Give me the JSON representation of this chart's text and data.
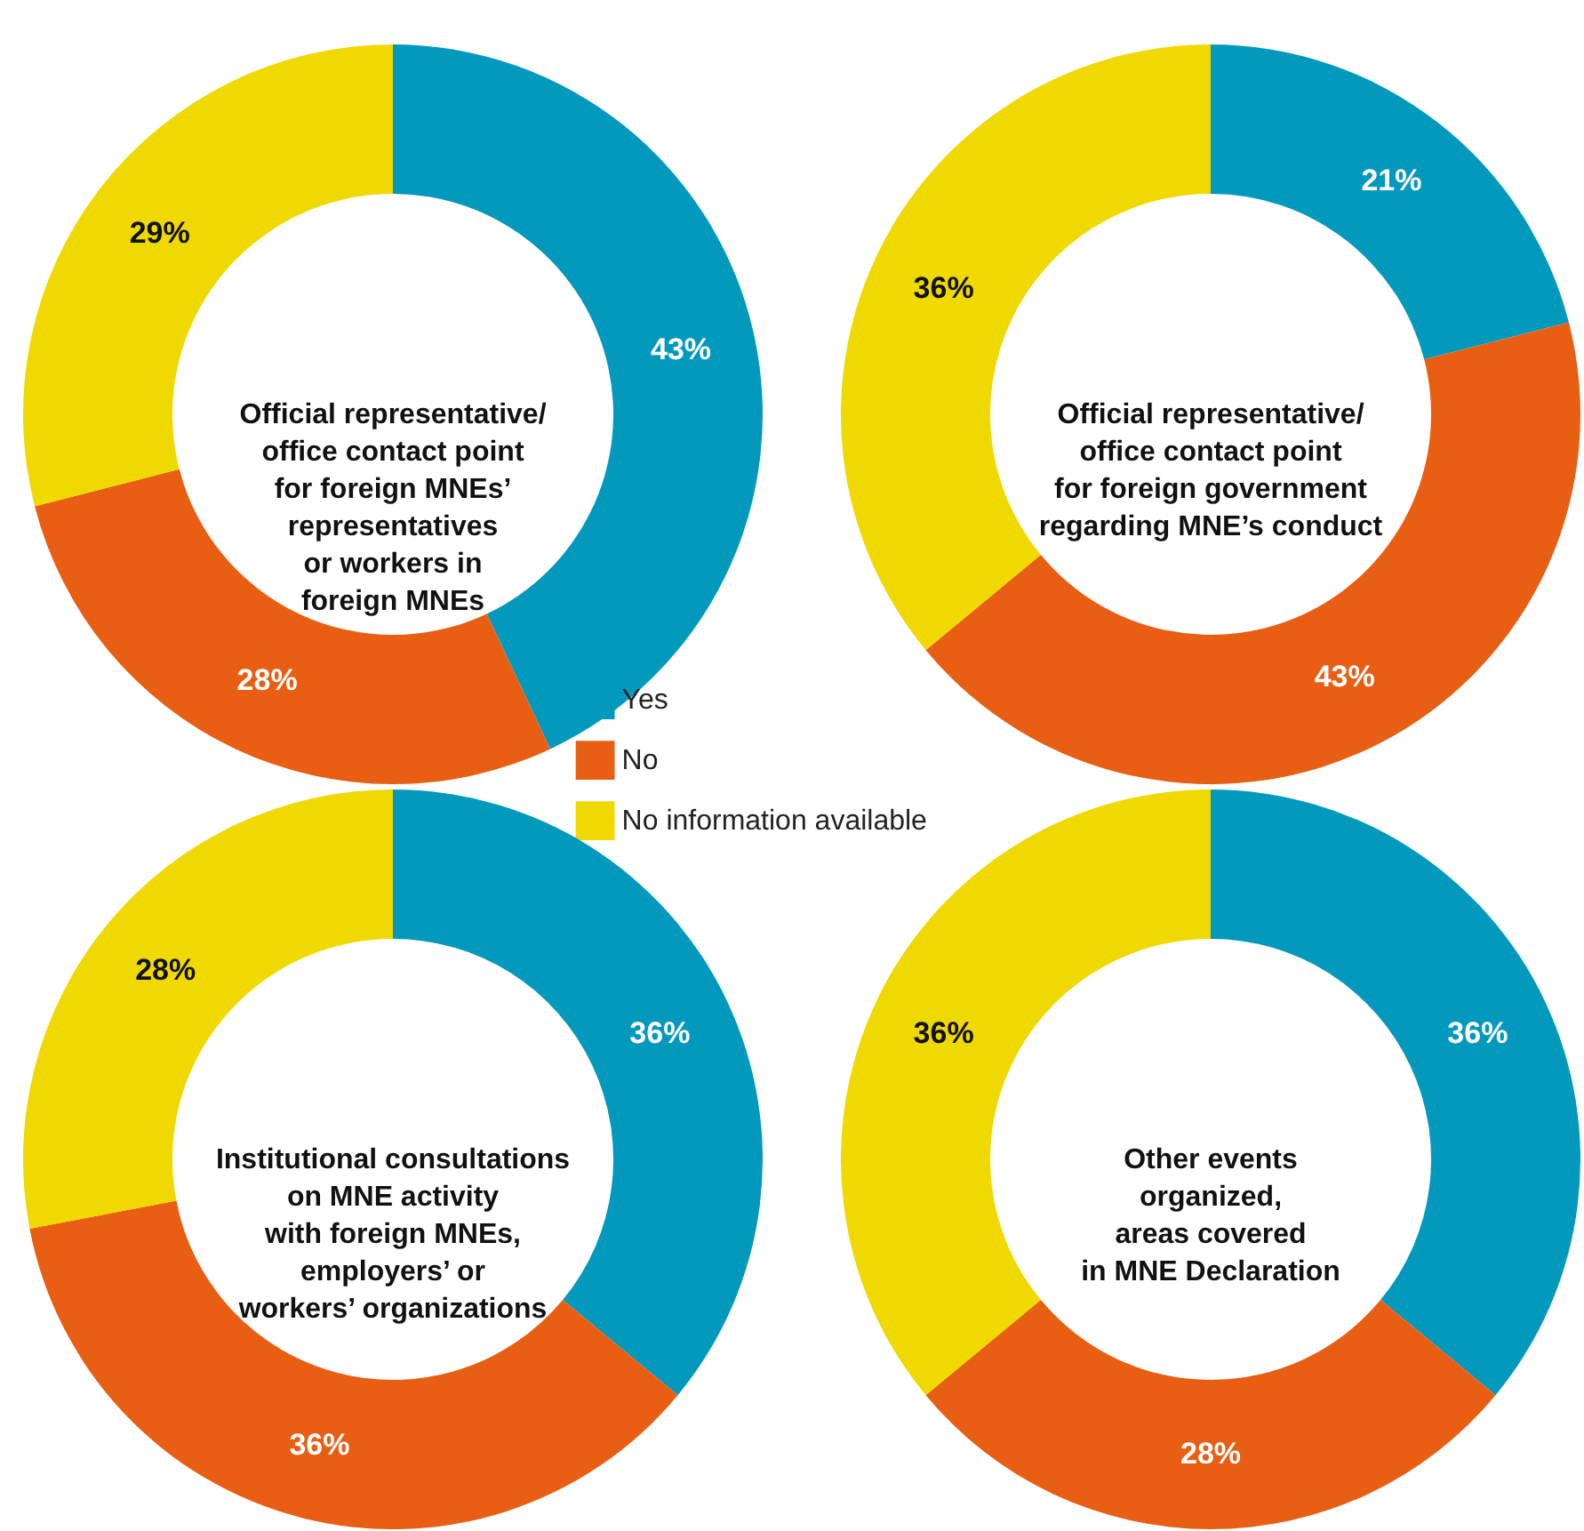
{
  "chart_data": [
    {
      "type": "donut",
      "title": "Official representative/\noffice contact point\nfor foreign MNEs’\nrepresentatives\nor workers in\nforeign MNEs",
      "categories": [
        "Yes",
        "No",
        "No information available"
      ],
      "values": [
        43,
        28,
        29
      ],
      "colors": [
        "#0399bd",
        "#e85e12",
        "#f0d900"
      ],
      "value_labels": [
        "43%",
        "28%",
        "29%"
      ],
      "legend": "bottom right"
    },
    {
      "type": "donut",
      "title": "Official representative/\noffice contact point\nfor foreign government\nregarding MNE’s conduct",
      "values": [
        21,
        43,
        36
      ],
      "colors": [
        "#0399bd",
        "#e85e12",
        "#f0d900"
      ],
      "value_labels": [
        "21%",
        "43%",
        "36%"
      ]
    },
    {
      "type": "donut",
      "title": "Institutional consultations\non MNE activity\nwith foreign  MNEs,\nemployers’ or\nworkers’ organizations",
      "values": [
        36,
        36,
        28
      ],
      "colors": [
        "#0399bd",
        "#e85e12",
        "#f0d900"
      ],
      "value_labels": [
        "36%",
        "36%",
        "28%"
      ]
    },
    {
      "type": "donut",
      "title": "Other events\norganized,\nareas covered\nin MNE Declaration",
      "values": [
        36,
        28,
        36
      ],
      "colors": [
        "#0399bd",
        "#e85e12",
        "#f0d900"
      ],
      "value_labels": [
        "36%",
        "28%",
        "36%"
      ]
    }
  ]
}
